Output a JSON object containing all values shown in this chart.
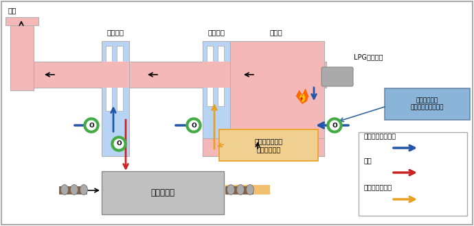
{
  "bg_color": "#f5f5f5",
  "border_color": "#aaaaaa",
  "exhaust_label": "排気",
  "heatex1_label": "熱交換器",
  "heatex2_label": "熱交換器",
  "combustion_label": "燃焼室",
  "lpg_label": "LPGバーナー",
  "dryer_label": "製品乾燥炉",
  "note1_label": "生産品目により\n溶剤量が変化",
  "note2_label": "溶剤量により\nエアー導入量を調整",
  "legend_fresh": "フレッシュエアー",
  "legend_hot": "熱風",
  "legend_solvent": "溶剤含むエアー",
  "color_pink": "#f4b8b8",
  "color_blue_light": "#b8d4f4",
  "color_gray": "#b0b0b0",
  "color_gray_box": "#c0c0c0",
  "color_arrow_blue": "#2255aa",
  "color_arrow_red": "#cc2222",
  "color_arrow_orange": "#e8a020",
  "color_green": "#44aa44",
  "color_note_bg": "#f0d090",
  "color_note2_bg": "#8ab4d8",
  "color_lpg_gray": "#aaaaaa"
}
